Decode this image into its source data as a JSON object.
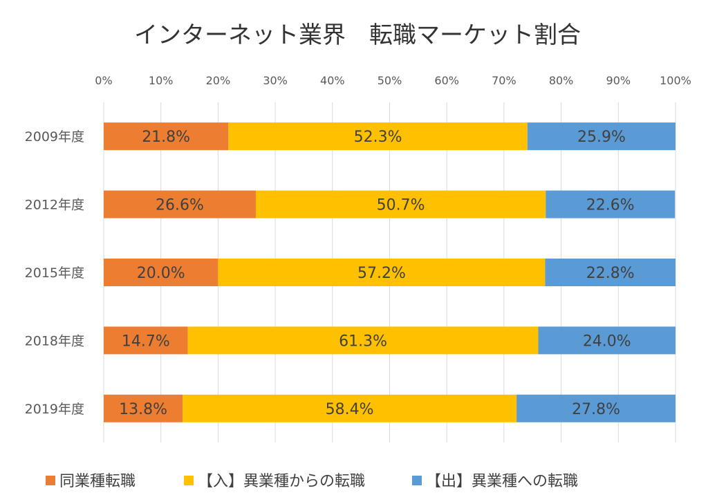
{
  "chart_data": {
    "type": "bar",
    "orientation": "horizontal",
    "stacked": "percent",
    "title": "インターネット業界　転職マーケット割合",
    "categories": [
      "2009年度",
      "2012年度",
      "2015年度",
      "2018年度",
      "2019年度"
    ],
    "series": [
      {
        "name": "同業種転職",
        "color": "#ED7D31",
        "values": [
          21.8,
          26.6,
          20.0,
          14.7,
          13.8
        ],
        "labels": [
          "21.8%",
          "26.6%",
          "20.0%",
          "14.7%",
          "13.8%"
        ]
      },
      {
        "name": "【入】異業種からの転職",
        "color": "#FFC000",
        "values": [
          52.3,
          50.7,
          57.2,
          61.3,
          58.4
        ],
        "labels": [
          "52.3%",
          "50.7%",
          "57.2%",
          "61.3%",
          "58.4%"
        ]
      },
      {
        "name": "【出】異業種への転職",
        "color": "#5B9BD5",
        "values": [
          25.9,
          22.6,
          22.8,
          24.0,
          27.8
        ],
        "labels": [
          "25.9%",
          "22.6%",
          "22.8%",
          "24.0%",
          "27.8%"
        ]
      }
    ],
    "xlim": [
      0,
      100
    ],
    "xticks": [
      "0%",
      "10%",
      "20%",
      "30%",
      "40%",
      "50%",
      "60%",
      "70%",
      "80%",
      "90%",
      "100%"
    ],
    "xaxis_position": "top",
    "grid": true,
    "legend": "bottom"
  }
}
